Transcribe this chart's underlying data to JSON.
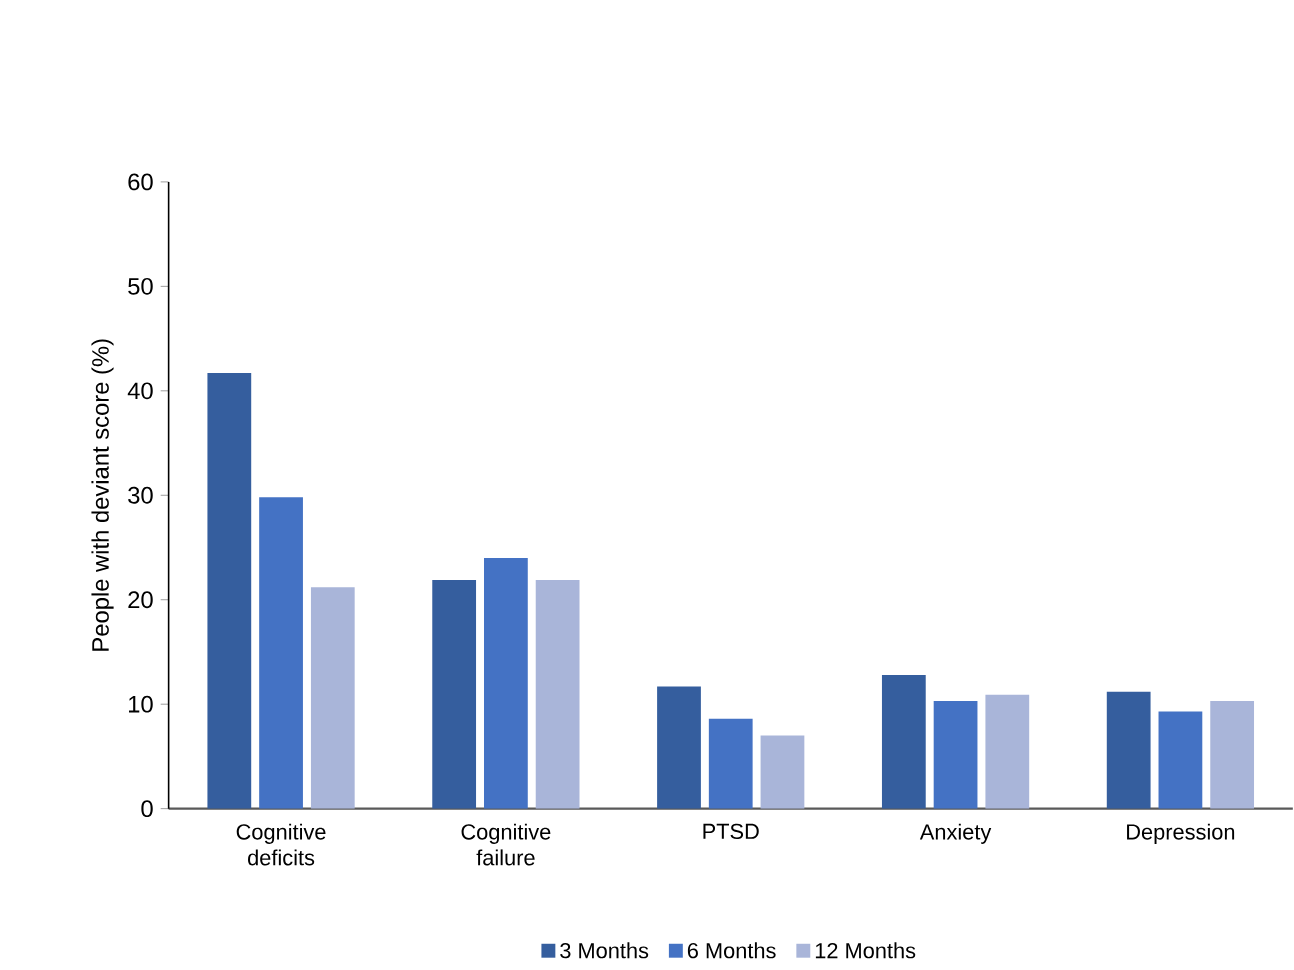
{
  "chart_data": {
    "type": "bar",
    "ylabel": "People with deviant score (%)",
    "categories": [
      "Cognitive deficits",
      "Cognitive failure",
      "PTSD",
      "Anxiety",
      "Depression"
    ],
    "series": [
      {
        "name": "3 Months",
        "color": "#355e9e",
        "values": [
          41.7,
          21.9,
          11.7,
          12.8,
          11.2
        ]
      },
      {
        "name": "6 Months",
        "color": "#4472c4",
        "values": [
          29.8,
          24.0,
          8.6,
          10.3,
          9.3
        ]
      },
      {
        "name": "12 Months",
        "color": "#a9b5d9",
        "values": [
          21.2,
          21.9,
          7.0,
          10.9,
          10.3
        ]
      }
    ],
    "ylim": [
      0,
      60
    ],
    "yticks": [
      0,
      10,
      20,
      30,
      40,
      50,
      60
    ],
    "grid": false,
    "legend": "bottom"
  }
}
